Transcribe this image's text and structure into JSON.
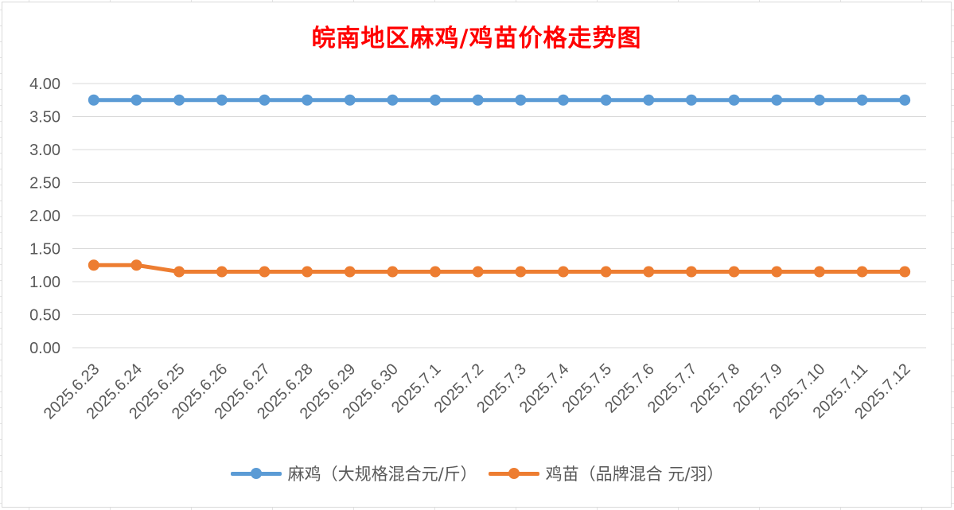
{
  "chart_data": {
    "type": "line",
    "title": "皖南地区麻鸡/鸡苗价格走势图",
    "categories": [
      "2025.6.23",
      "2025.6.24",
      "2025.6.25",
      "2025.6.26",
      "2025.6.27",
      "2025.6.28",
      "2025.6.29",
      "2025.6.30",
      "2025.7.1",
      "2025.7.2",
      "2025.7.3",
      "2025.7.4",
      "2025.7.5",
      "2025.7.6",
      "2025.7.7",
      "2025.7.8",
      "2025.7.9",
      "2025.7.10",
      "2025.7.11",
      "2025.7.12"
    ],
    "series": [
      {
        "name": "麻鸡（大规格混合元/斤）",
        "color": "#5b9bd5",
        "values": [
          3.75,
          3.75,
          3.75,
          3.75,
          3.75,
          3.75,
          3.75,
          3.75,
          3.75,
          3.75,
          3.75,
          3.75,
          3.75,
          3.75,
          3.75,
          3.75,
          3.75,
          3.75,
          3.75,
          3.75
        ]
      },
      {
        "name": "鸡苗（品牌混合 元/羽）",
        "color": "#ed7d31",
        "values": [
          1.25,
          1.25,
          1.15,
          1.15,
          1.15,
          1.15,
          1.15,
          1.15,
          1.15,
          1.15,
          1.15,
          1.15,
          1.15,
          1.15,
          1.15,
          1.15,
          1.15,
          1.15,
          1.15,
          1.15
        ]
      }
    ],
    "y_ticks": [
      "0.00",
      "0.50",
      "1.00",
      "1.50",
      "2.00",
      "2.50",
      "3.00",
      "3.50",
      "4.00"
    ],
    "ylim": [
      0,
      4
    ],
    "grid": true,
    "legend_position": "bottom"
  }
}
